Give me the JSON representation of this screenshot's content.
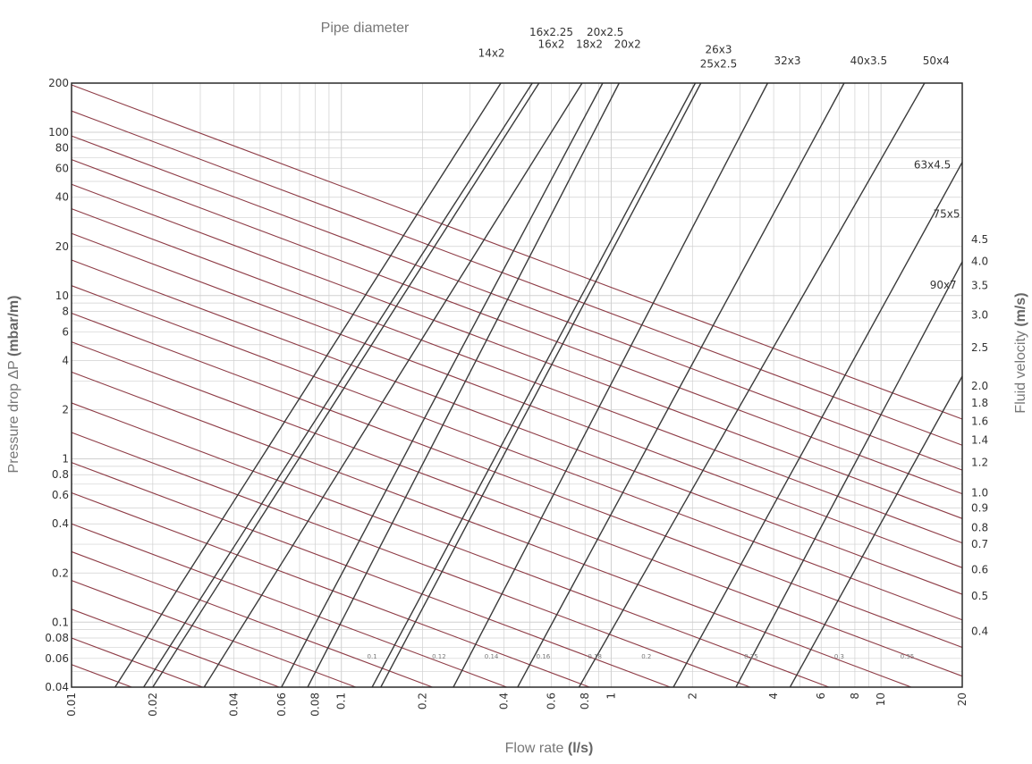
{
  "chart_data": {
    "type": "line",
    "title": "Pipe diameter",
    "xlabel": "Flow rate",
    "xlabel_unit": "(l/s)",
    "ylabel": "Pressure drop ΔP",
    "ylabel_unit": "(mbar/m)",
    "y2label": "Fluid velocity",
    "y2label_unit": "(m/s)",
    "xscale": "log",
    "yscale": "log",
    "xlim": [
      0.01,
      20
    ],
    "ylim": [
      0.04,
      200
    ],
    "grid": true,
    "x_ticks": [
      0.01,
      0.02,
      0.04,
      0.06,
      0.08,
      0.1,
      0.2,
      0.4,
      0.6,
      0.8,
      1,
      2,
      4,
      6,
      8,
      10,
      20
    ],
    "x_tick_labels": [
      "0.01",
      "0.02",
      "0.04",
      "0.06",
      "0.08",
      "0.1",
      "0.2",
      "0.4",
      "0.6",
      "0.8",
      "1",
      "2",
      "4",
      "6",
      "8",
      "10",
      "20"
    ],
    "y_ticks": [
      0.04,
      0.06,
      0.08,
      0.1,
      0.2,
      0.4,
      0.6,
      0.8,
      1,
      2,
      4,
      6,
      8,
      10,
      20,
      40,
      60,
      80,
      100,
      200
    ],
    "y_tick_labels": [
      "0.04",
      "0.06",
      "0.08",
      "0.1",
      "0.2",
      "0.4",
      "0.6",
      "0.8",
      "1",
      "2",
      "4",
      "6",
      "8",
      "10",
      "20",
      "40",
      "60",
      "80",
      "100",
      "200"
    ],
    "velocity_ticks": [
      {
        "label": "4.5",
        "y": 22
      },
      {
        "label": "4.0",
        "y": 16.2
      },
      {
        "label": "3.5",
        "y": 11.5
      },
      {
        "label": "3.0",
        "y": 7.6
      },
      {
        "label": "2.5",
        "y": 4.8
      },
      {
        "label": "2.0",
        "y": 2.8
      },
      {
        "label": "1.8",
        "y": 2.2
      },
      {
        "label": "1.6",
        "y": 1.7
      },
      {
        "label": "1.4",
        "y": 1.3
      },
      {
        "label": "1.2",
        "y": 0.95
      },
      {
        "label": "1.0",
        "y": 0.62
      },
      {
        "label": "0.9",
        "y": 0.5
      },
      {
        "label": "0.8",
        "y": 0.38
      },
      {
        "label": "0.7",
        "y": 0.3
      },
      {
        "label": "0.6",
        "y": 0.21
      },
      {
        "label": "0.5",
        "y": 0.145
      },
      {
        "label": "0.4",
        "y": 0.088
      }
    ],
    "pipe_diameters": [
      {
        "name": "14x2",
        "flow_at_200": 0.39,
        "flow_at_004": 0.0145
      },
      {
        "name": "16x2.25",
        "flow_at_200": 0.51,
        "flow_at_004": 0.0185
      },
      {
        "name": "16x2",
        "flow_at_200": 0.54,
        "flow_at_004": 0.02
      },
      {
        "name": "18x2",
        "flow_at_200": 0.78,
        "flow_at_004": 0.031
      },
      {
        "name": "20x2.5",
        "flow_at_200": 0.93,
        "flow_at_004": 0.06
      },
      {
        "name": "20x2",
        "flow_at_200": 1.07,
        "flow_at_004": 0.075
      },
      {
        "name": "26x3",
        "flow_at_200": 2.05,
        "flow_at_004": 0.13
      },
      {
        "name": "25x2.5",
        "flow_at_200": 2.15,
        "flow_at_004": 0.14
      },
      {
        "name": "32x3",
        "flow_at_200": 3.8,
        "flow_at_004": 0.26
      },
      {
        "name": "40x3.5",
        "flow_at_200": 7.3,
        "flow_at_004": 0.45
      },
      {
        "name": "50x4",
        "flow_at_200": 14.5,
        "flow_at_004": 0.76
      },
      {
        "name": "63x4.5",
        "flow_at_200": 29,
        "flow_at_004": 1.7
      },
      {
        "name": "75x5",
        "flow_at_200": 45,
        "flow_at_004": 2.9
      },
      {
        "name": "90x7",
        "flow_at_200": 80,
        "flow_at_004": 4.6
      }
    ],
    "velocity_line_slope": -0.62,
    "velocity_lines_dp_at_left": [
      195,
      135,
      95,
      68,
      48,
      34,
      24,
      16.5,
      11.5,
      7.8,
      5.2,
      3.4,
      2.2,
      1.45,
      0.95,
      0.62,
      0.4,
      0.27,
      0.18,
      0.12,
      0.08,
      0.055
    ],
    "small_labels": [
      "0.1",
      "0.12",
      "0.14",
      "0.16",
      "0.18",
      "0.2",
      "0.25",
      "0.3",
      "0.35"
    ],
    "small_label_x": [
      0.13,
      0.23,
      0.36,
      0.56,
      0.87,
      1.35,
      3.3,
      7.0,
      12.5
    ],
    "small_label_y": 0.06,
    "pipe_label_x": [
      0.36,
      0.6,
      0.6,
      0.83,
      0.95,
      1.15,
      2.5,
      2.5,
      4.5,
      9.0,
      16.0,
      15.5,
      17.5,
      17.0
    ],
    "pipe_label_y": [
      290,
      390,
      330,
      330,
      390,
      330,
      305,
      250,
      260,
      260,
      260,
      60,
      30,
      11
    ],
    "colors": {
      "grid": "#d0d0d0",
      "pipe_line": "#3a3a3a",
      "velocity_line": "#8e3c46",
      "frame": "#2a2a2a"
    }
  }
}
